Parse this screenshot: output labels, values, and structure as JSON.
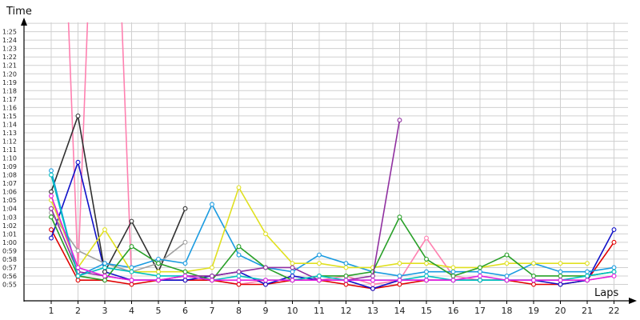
{
  "chart_data": {
    "type": "line",
    "xlabel": "Laps",
    "ylabel": "Time",
    "x": [
      1,
      2,
      3,
      4,
      5,
      6,
      7,
      8,
      9,
      10,
      11,
      12,
      13,
      14,
      15,
      16,
      17,
      18,
      19,
      20,
      21,
      22
    ],
    "y_ticks": [
      "0:55",
      "0:56",
      "0:57",
      "0:58",
      "0:59",
      "1:00",
      "1:01",
      "1:02",
      "1:03",
      "1:04",
      "1:05",
      "1:06",
      "1:07",
      "1:08",
      "1:09",
      "1:10",
      "1:11",
      "1:12",
      "1:13",
      "1:14",
      "1:15",
      "1:16",
      "1:17",
      "1:18",
      "1:19",
      "1:20",
      "1:21",
      "1:22",
      "1:23",
      "1:24",
      "1:25"
    ],
    "ylim_seconds": [
      53.5,
      90
    ],
    "grid": true,
    "series": [
      {
        "color": "#ff80b0",
        "values": [
          140,
          56.5,
          140,
          55.5,
          55.5,
          55.5,
          55.5,
          55,
          55.5,
          55.5,
          55.5,
          56,
          55,
          55.5,
          60.5,
          56,
          55.5,
          55.5,
          55.5,
          55.5,
          55.5,
          56
        ]
      },
      {
        "color": "#e00000",
        "values": [
          61.5,
          55.5,
          55.5,
          55,
          55.5,
          55.5,
          55.5,
          55,
          55,
          55.5,
          55.5,
          55,
          54.5,
          55,
          55.5,
          55.5,
          55.5,
          55.5,
          55,
          55,
          55.5,
          60
        ]
      },
      {
        "color": "#1010c8",
        "values": [
          60.5,
          69.5,
          56.5,
          55.5,
          55.5,
          55.5,
          56,
          56.5,
          55,
          56,
          55.5,
          55.5,
          54.5,
          55.5,
          55.5,
          55.5,
          55.5,
          55.5,
          55.5,
          55,
          55.5,
          61.5
        ]
      },
      {
        "color": "#303030",
        "values": [
          66,
          75,
          56.5,
          62.5,
          56.5,
          64,
          null,
          null,
          null,
          null,
          null,
          null,
          null,
          null,
          null,
          null,
          null,
          null,
          null,
          null,
          null,
          null
        ]
      },
      {
        "color": "#a0a0a0",
        "values": [
          63.5,
          59,
          57.5,
          56.5,
          57.5,
          60,
          null,
          null,
          null,
          null,
          null,
          null,
          null,
          null,
          null,
          null,
          null,
          null,
          null,
          null,
          null,
          null
        ]
      },
      {
        "color": "#1a9be0",
        "values": [
          68.5,
          56,
          57.5,
          57,
          58,
          57.5,
          64.5,
          58.5,
          57,
          56.5,
          58.5,
          57.5,
          56.5,
          56,
          56.5,
          56.5,
          56.5,
          56,
          57.5,
          56.5,
          56.5,
          57
        ]
      },
      {
        "color": "#e0e020",
        "values": [
          65,
          57,
          61.5,
          56.5,
          56.5,
          56.5,
          57,
          66.5,
          61,
          57.5,
          57.5,
          57,
          57,
          57.5,
          57.5,
          57,
          57,
          57.5,
          57.5,
          57.5,
          57.5,
          null
        ]
      },
      {
        "color": "#28a028",
        "values": [
          63,
          56,
          55.5,
          59.5,
          57.5,
          56.5,
          55.5,
          59.5,
          57,
          55.5,
          56,
          56,
          56.5,
          63,
          58,
          56,
          57,
          58.5,
          56,
          56,
          56,
          56.5
        ]
      },
      {
        "color": "#9030a0",
        "values": [
          64,
          56.5,
          56,
          55.5,
          55.5,
          56,
          56,
          56.5,
          57,
          57,
          55.5,
          55.5,
          56,
          74.5,
          null,
          null,
          null,
          null,
          null,
          null,
          null,
          null
        ]
      },
      {
        "color": "#00c0c0",
        "values": [
          68,
          56,
          57,
          56.5,
          56,
          56,
          55.5,
          56,
          55.5,
          55.5,
          56,
          55.5,
          55.5,
          55.5,
          56,
          55.5,
          55.5,
          55.5,
          55.5,
          55.5,
          56,
          56.5
        ]
      },
      {
        "color": "#e020e0",
        "values": [
          65.5,
          57,
          56,
          55.5,
          55.5,
          56,
          55.5,
          55.5,
          55.5,
          55.5,
          55.5,
          55.5,
          55.5,
          55.5,
          55.5,
          55.5,
          56,
          55.5,
          55.5,
          55.5,
          55.5,
          56
        ]
      }
    ]
  }
}
